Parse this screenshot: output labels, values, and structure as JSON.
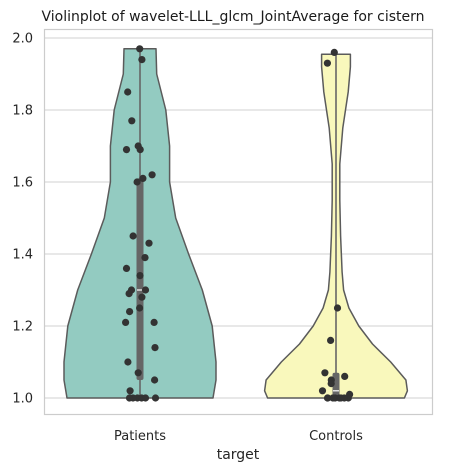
{
  "chart_data": {
    "type": "violin",
    "title": "Violinplot of wavelet-LLL_glcm_JointAverage for cistern",
    "xlabel": "target",
    "ylabel": "",
    "categories": [
      "Patients",
      "Controls"
    ],
    "ylim": [
      0.955,
      2.025
    ],
    "yticks": [
      1.0,
      1.2,
      1.4,
      1.6,
      1.8,
      2.0
    ],
    "ytick_labels": [
      "1.0",
      "1.2",
      "1.4",
      "1.6",
      "1.8",
      "2.0"
    ],
    "grid": "horizontal",
    "colors": {
      "Patients": "#93cbc1",
      "Controls": "#f9f8bc",
      "outline": "#5b5b5b",
      "point": "#333333",
      "box": "#666666",
      "grid": "#d9d9d9",
      "frame": "#cccccc"
    },
    "violins": [
      {
        "category": "Patients",
        "min": 1.0,
        "max": 1.97,
        "q1": 1.05,
        "median": 1.3,
        "q3": 1.61,
        "profile": [
          [
            1.0,
            0.96
          ],
          [
            1.05,
            1.0
          ],
          [
            1.1,
            1.0
          ],
          [
            1.2,
            0.95
          ],
          [
            1.3,
            0.82
          ],
          [
            1.4,
            0.64
          ],
          [
            1.5,
            0.47
          ],
          [
            1.6,
            0.39
          ],
          [
            1.7,
            0.39
          ],
          [
            1.8,
            0.34
          ],
          [
            1.9,
            0.22
          ],
          [
            1.97,
            0.21
          ]
        ],
        "points": [
          1.97,
          1.94,
          1.85,
          1.77,
          1.7,
          1.69,
          1.69,
          1.62,
          1.61,
          1.6,
          1.45,
          1.43,
          1.39,
          1.36,
          1.34,
          1.3,
          1.3,
          1.29,
          1.28,
          1.25,
          1.24,
          1.21,
          1.21,
          1.14,
          1.1,
          1.07,
          1.05,
          1.02,
          1.0,
          1.0,
          1.0,
          1.0,
          1.0,
          1.0
        ]
      },
      {
        "category": "Controls",
        "min": 1.0,
        "max": 1.955,
        "q1": 1.0,
        "median": 1.02,
        "q3": 1.07,
        "profile": [
          [
            1.0,
            0.9
          ],
          [
            1.02,
            0.94
          ],
          [
            1.05,
            0.92
          ],
          [
            1.1,
            0.72
          ],
          [
            1.15,
            0.48
          ],
          [
            1.2,
            0.3
          ],
          [
            1.25,
            0.17
          ],
          [
            1.3,
            0.1
          ],
          [
            1.35,
            0.08
          ],
          [
            1.45,
            0.06
          ],
          [
            1.55,
            0.05
          ],
          [
            1.65,
            0.05
          ],
          [
            1.75,
            0.09
          ],
          [
            1.85,
            0.16
          ],
          [
            1.92,
            0.19
          ],
          [
            1.955,
            0.19
          ]
        ],
        "points": [
          1.96,
          1.93,
          1.25,
          1.16,
          1.07,
          1.06,
          1.05,
          1.04,
          1.02,
          1.01,
          1.0,
          1.0,
          1.0,
          1.0,
          1.0,
          1.0,
          1.0,
          1.0
        ]
      }
    ]
  }
}
